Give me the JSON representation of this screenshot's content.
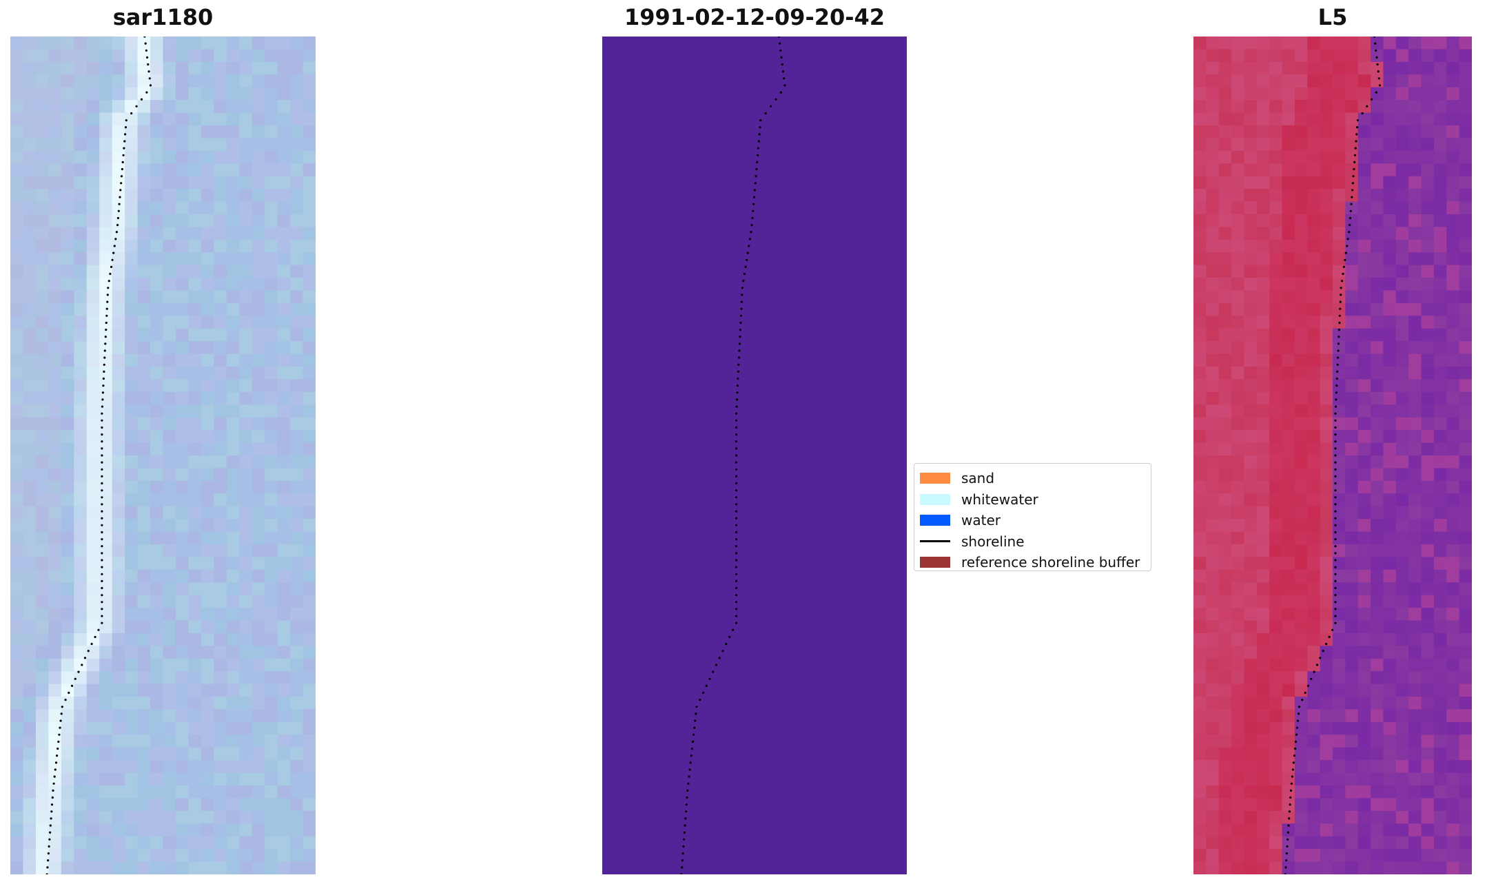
{
  "panels": {
    "left": {
      "title": "sar1180"
    },
    "mid": {
      "title": "1991-02-12-09-20-42",
      "fill_color": "#522498"
    },
    "right": {
      "title": "L5"
    }
  },
  "legend": {
    "items": [
      {
        "label": "sand",
        "color": "#ff8c42",
        "kind": "patch"
      },
      {
        "label": "whitewater",
        "color": "#c8faff",
        "kind": "patch"
      },
      {
        "label": "water",
        "color": "#005cff",
        "kind": "patch"
      },
      {
        "label": "shoreline",
        "color": "#000000",
        "kind": "line"
      },
      {
        "label": "reference shoreline buffer",
        "color": "#9b3535",
        "kind": "patch"
      }
    ]
  },
  "colors": {
    "shoreline_dots": "#000000",
    "left_water": "#a6bfe6",
    "left_whitewater": "#eefcff",
    "right_land": "#c8385e",
    "right_water": "#8a3aa0"
  }
}
